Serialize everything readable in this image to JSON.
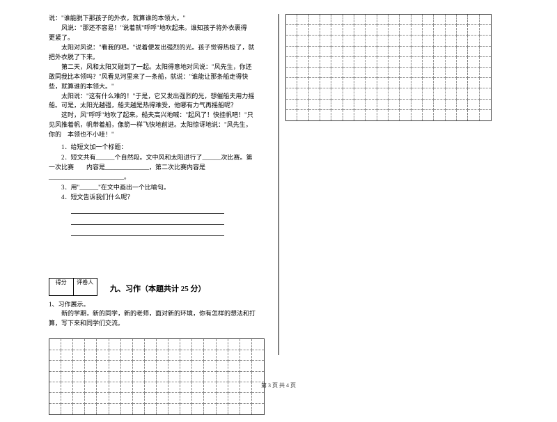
{
  "passage": {
    "lines": [
      "说：\"谁能脱下那孩子的外衣，就算谁的本领大。\"",
      "风说：\"那还不容易！\"说着就\"呼呼\"地吹起来。谁知孩子将外衣裹得　更紧了。",
      "太阳对风说：\"看我的吧。\"说着便发出强烈的光。孩子觉得热极了，就　把外衣脱了下来。",
      "第二天，风和太阳又碰到了一起。太阳得意地对风说：\"风先生，你还敢同我比本领吗？\"风看见河里来了一条船，就说：\"谁能让那条船走得快些，就算谁的本领大。\"",
      "太阳说：\"这有什么难的！\"于是，它又发出强烈的光，想催船夫用力摇　船。可是，太阳光越强，船夫越是热得难受，他哪有力气再摇船呢？",
      "这时，风\"呼呼\"地吹了起来。船夫高兴地喊：\"起风了！快挂帆吧！\"只　见风推着帆，帆带着船，像箭一样飞快地前进。太阳惊讶地说：\"风先生，你的　本领也不小哇！\""
    ]
  },
  "questions": {
    "q1": "1．给短文加一个标题：",
    "q2a": "2．短文共有______个自然段。文中风和太阳进行了______次比赛。第一次比赛　　内容是______________，第二次比赛内容是________________________。",
    "q3": "3．用\"______\"在文中画出一个比喻句。",
    "q4": "4．短文告诉我们什么呢？"
  },
  "score": {
    "label1": "得分",
    "label2": "评卷人"
  },
  "section9": {
    "title": "九、习作（本题共计 25 分）"
  },
  "writing": {
    "lead": "1、习作展示。",
    "body": "新的学期，新的同学，新的老师，面对新的环境，你有怎样的想法和打　算，写下来和同学们交流。"
  },
  "gridLeft": {
    "cols": 18,
    "rows": 7
  },
  "gridRight": {
    "cols": 18,
    "rows": 10
  },
  "footer": "第 3 页 共 4 页",
  "colors": {
    "text": "#000000",
    "bg": "#ffffff",
    "gridBorder": "#333333",
    "gridDash": "#888888"
  }
}
